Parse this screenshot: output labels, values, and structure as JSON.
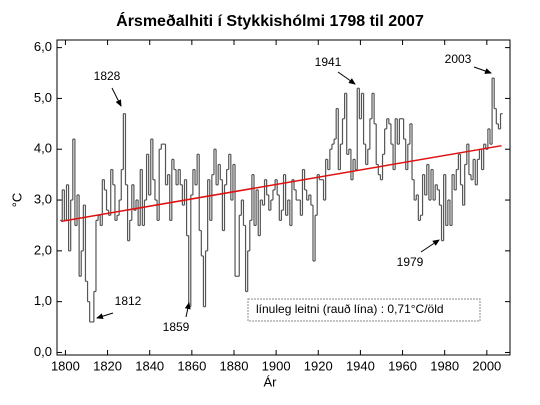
{
  "chart_data": {
    "type": "step",
    "title": "Ársmeðalhiti í Stykkishólmi 1798 til 2007",
    "xlabel": "Ár",
    "ylabel": "°C",
    "xlim": [
      1796,
      2011
    ],
    "ylim": [
      -0.05,
      6.15
    ],
    "xticks": [
      1800,
      1820,
      1840,
      1860,
      1880,
      1900,
      1920,
      1940,
      1960,
      1980,
      2000
    ],
    "yticks": [
      {
        "value": 0,
        "label": "0,0"
      },
      {
        "value": 1,
        "label": "1,0"
      },
      {
        "value": 2,
        "label": "2,0"
      },
      {
        "value": 3,
        "label": "3,0"
      },
      {
        "value": 4,
        "label": "4,0"
      },
      {
        "value": 5,
        "label": "5,0"
      },
      {
        "value": 6,
        "label": "6,0"
      }
    ],
    "series": [
      {
        "color": "#555555",
        "x": [
          1798,
          1799,
          1800,
          1801,
          1802,
          1803,
          1804,
          1805,
          1806,
          1807,
          1808,
          1809,
          1810,
          1811,
          1812,
          1813,
          1814,
          1815,
          1816,
          1817,
          1818,
          1819,
          1820,
          1821,
          1822,
          1823,
          1824,
          1825,
          1826,
          1827,
          1828,
          1829,
          1830,
          1831,
          1832,
          1833,
          1834,
          1835,
          1836,
          1837,
          1838,
          1839,
          1840,
          1841,
          1842,
          1843,
          1844,
          1845,
          1846,
          1847,
          1848,
          1849,
          1850,
          1851,
          1852,
          1853,
          1854,
          1855,
          1856,
          1857,
          1858,
          1859,
          1860,
          1861,
          1862,
          1863,
          1864,
          1865,
          1866,
          1867,
          1868,
          1869,
          1870,
          1871,
          1872,
          1873,
          1874,
          1875,
          1876,
          1877,
          1878,
          1879,
          1880,
          1881,
          1882,
          1883,
          1884,
          1885,
          1886,
          1887,
          1888,
          1889,
          1890,
          1891,
          1892,
          1893,
          1894,
          1895,
          1896,
          1897,
          1898,
          1899,
          1900,
          1901,
          1902,
          1903,
          1904,
          1905,
          1906,
          1907,
          1908,
          1909,
          1910,
          1911,
          1912,
          1913,
          1914,
          1915,
          1916,
          1917,
          1918,
          1919,
          1920,
          1921,
          1922,
          1923,
          1924,
          1925,
          1926,
          1927,
          1928,
          1929,
          1930,
          1931,
          1932,
          1933,
          1934,
          1935,
          1936,
          1937,
          1938,
          1939,
          1940,
          1941,
          1942,
          1943,
          1944,
          1945,
          1946,
          1947,
          1948,
          1949,
          1950,
          1951,
          1952,
          1953,
          1954,
          1955,
          1956,
          1957,
          1958,
          1959,
          1960,
          1961,
          1962,
          1963,
          1964,
          1965,
          1966,
          1967,
          1968,
          1969,
          1970,
          1971,
          1972,
          1973,
          1974,
          1975,
          1976,
          1977,
          1978,
          1979,
          1980,
          1981,
          1982,
          1983,
          1984,
          1985,
          1986,
          1987,
          1988,
          1989,
          1990,
          1991,
          1992,
          1993,
          1994,
          1995,
          1996,
          1997,
          1998,
          1999,
          2000,
          2001,
          2002,
          2003,
          2004,
          2005,
          2006,
          2007
        ],
        "values": [
          2.6,
          3.2,
          2.6,
          3.3,
          2.0,
          3.0,
          4.2,
          2.5,
          3.1,
          1.5,
          2.0,
          2.9,
          1.4,
          1.0,
          0.6,
          0.6,
          1.2,
          2.6,
          2.7,
          2.5,
          3.4,
          3.2,
          2.8,
          2.7,
          3.6,
          3.3,
          2.6,
          2.7,
          3.0,
          3.6,
          4.7,
          3.3,
          2.2,
          2.6,
          3.3,
          2.8,
          3.0,
          2.5,
          3.6,
          2.5,
          3.0,
          3.9,
          3.1,
          4.2,
          3.4,
          3.0,
          2.6,
          4.0,
          4.1,
          4.1,
          3.3,
          3.5,
          2.6,
          3.8,
          3.6,
          3.3,
          3.6,
          3.3,
          2.9,
          3.4,
          2.3,
          0.9,
          3.1,
          3.6,
          3.3,
          3.9,
          2.4,
          1.9,
          0.9,
          2.0,
          3.4,
          2.6,
          3.5,
          4.0,
          3.3,
          3.7,
          3.4,
          2.4,
          3.3,
          3.6,
          3.9,
          3.0,
          3.7,
          1.5,
          1.5,
          2.7,
          3.0,
          2.5,
          1.2,
          2.0,
          2.6,
          3.5,
          2.5,
          3.2,
          2.3,
          3.0,
          2.9,
          3.4,
          3.1,
          2.8,
          3.0,
          3.2,
          3.4,
          3.1,
          2.6,
          2.8,
          3.5,
          2.7,
          3.0,
          2.5,
          3.4,
          3.2,
          3.0,
          3.0,
          2.7,
          3.6,
          3.2,
          3.0,
          3.1,
          2.9,
          1.8,
          2.7,
          3.5,
          3.4,
          3.4,
          3.0,
          3.8,
          3.6,
          4.0,
          4.1,
          4.2,
          4.8,
          3.6,
          4.1,
          4.6,
          5.1,
          3.9,
          4.0,
          3.4,
          3.8,
          3.6,
          5.2,
          4.6,
          5.1,
          4.1,
          3.7,
          4.0,
          4.6,
          5.1,
          4.5,
          3.7,
          3.5,
          3.4,
          3.9,
          4.4,
          4.6,
          4.5,
          4.1,
          3.6,
          4.6,
          4.1,
          4.6,
          4.6,
          4.2,
          3.6,
          4.1,
          4.5,
          3.4,
          3.0,
          3.1,
          2.6,
          2.7,
          3.5,
          3.1,
          3.7,
          3.0,
          3.6,
          3.0,
          3.3,
          3.2,
          2.9,
          2.2,
          3.5,
          2.5,
          3.0,
          2.5,
          3.5,
          3.2,
          3.6,
          3.9,
          3.3,
          2.9,
          3.7,
          4.1,
          3.5,
          3.4,
          3.8,
          3.3,
          3.8,
          4.0,
          3.6,
          4.1,
          4.0,
          4.4,
          4.1,
          5.4,
          4.8,
          4.5,
          4.4,
          4.7
        ]
      }
    ],
    "trend": {
      "color": "#e01010",
      "x": [
        1798,
        2007
      ],
      "values": [
        2.58,
        4.07
      ]
    },
    "trend_label": "línuleg leitni (rauð lína) : 0,71°C/öld",
    "annotations": [
      "1828",
      "1812",
      "1859",
      "1941",
      "1979",
      "2003"
    ]
  }
}
